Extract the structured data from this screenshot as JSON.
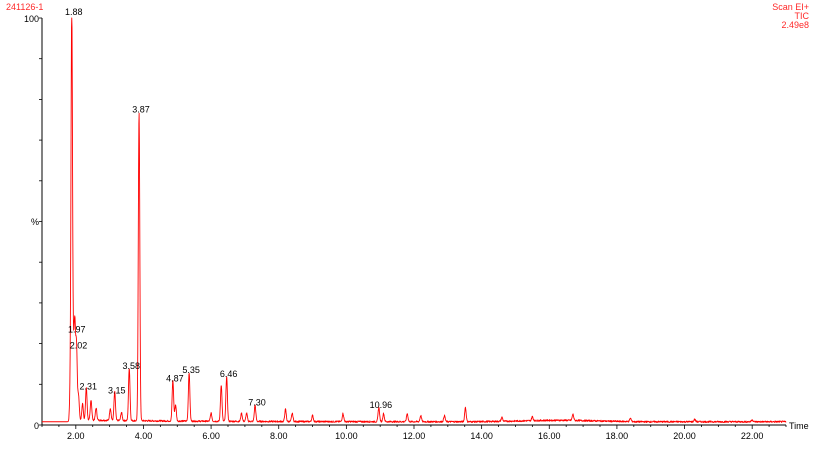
{
  "header": {
    "sample_id": "241126-1",
    "scan_mode": "Scan EI+",
    "trace": "TIC",
    "intensity": "2.49e8"
  },
  "colors": {
    "trace": "#ff0000",
    "header_text": "#ff2a2a",
    "axis": "#000000"
  },
  "chart_data": {
    "type": "line",
    "title": "",
    "xlabel": "Time",
    "ylabel": "%",
    "xlim": [
      1.0,
      23.0
    ],
    "ylim": [
      0,
      100
    ],
    "x_ticks": [
      "2.00",
      "4.00",
      "6.00",
      "8.00",
      "10.00",
      "12.00",
      "14.00",
      "16.00",
      "18.00",
      "20.00",
      "22.00"
    ],
    "y_ticks": [
      "0",
      "%",
      "100"
    ],
    "grid": false,
    "legend": "none",
    "peaks": [
      {
        "rt": 1.84,
        "height": 7
      },
      {
        "rt": 1.88,
        "height": 100,
        "label": "1.88"
      },
      {
        "rt": 1.93,
        "height": 12
      },
      {
        "rt": 1.97,
        "height": 22,
        "label": "1.97"
      },
      {
        "rt": 2.02,
        "height": 18,
        "label": "2.02"
      },
      {
        "rt": 2.08,
        "height": 6
      },
      {
        "rt": 2.2,
        "height": 4
      },
      {
        "rt": 2.31,
        "height": 8,
        "label": "2.31"
      },
      {
        "rt": 2.45,
        "height": 5
      },
      {
        "rt": 2.6,
        "height": 3
      },
      {
        "rt": 3.02,
        "height": 3
      },
      {
        "rt": 3.15,
        "height": 7,
        "label": "3.15"
      },
      {
        "rt": 3.35,
        "height": 2
      },
      {
        "rt": 3.58,
        "height": 13,
        "label": "3.58"
      },
      {
        "rt": 3.87,
        "height": 76,
        "label": "3.87"
      },
      {
        "rt": 4.87,
        "height": 10,
        "label": "4.87"
      },
      {
        "rt": 4.95,
        "height": 4
      },
      {
        "rt": 5.35,
        "height": 12,
        "label": "5.35"
      },
      {
        "rt": 6.0,
        "height": 2
      },
      {
        "rt": 6.3,
        "height": 9
      },
      {
        "rt": 6.46,
        "height": 11,
        "label": "6.46"
      },
      {
        "rt": 6.9,
        "height": 2
      },
      {
        "rt": 7.05,
        "height": 2
      },
      {
        "rt": 7.3,
        "height": 4,
        "label": "7.30"
      },
      {
        "rt": 8.2,
        "height": 3
      },
      {
        "rt": 8.4,
        "height": 2
      },
      {
        "rt": 9.0,
        "height": 1.5
      },
      {
        "rt": 9.9,
        "height": 2
      },
      {
        "rt": 10.96,
        "height": 3.5,
        "label": "10.96"
      },
      {
        "rt": 11.1,
        "height": 2
      },
      {
        "rt": 11.8,
        "height": 2
      },
      {
        "rt": 12.2,
        "height": 1.5
      },
      {
        "rt": 12.9,
        "height": 1.5
      },
      {
        "rt": 13.52,
        "height": 3.5
      },
      {
        "rt": 14.6,
        "height": 1
      },
      {
        "rt": 15.5,
        "height": 1
      },
      {
        "rt": 16.7,
        "height": 1.5
      },
      {
        "rt": 18.4,
        "height": 0.8
      },
      {
        "rt": 20.3,
        "height": 0.6
      },
      {
        "rt": 22.0,
        "height": 0.5
      }
    ]
  }
}
